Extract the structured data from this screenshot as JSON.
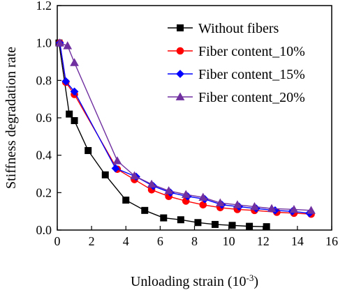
{
  "chart_data": {
    "type": "line",
    "xlabel": "Unloading strain (10",
    "xlabel_sup": "-3",
    "xlabel_end": ")",
    "ylabel": "Stiffness degradation rate",
    "xlim": [
      0,
      16
    ],
    "ylim": [
      0,
      1.2
    ],
    "xticks": [
      "0",
      "2",
      "4",
      "6",
      "8",
      "10",
      "12",
      "14",
      "16"
    ],
    "yticks": [
      "0.0",
      "0.2",
      "0.4",
      "0.6",
      "0.8",
      "1.0",
      "1.2"
    ],
    "legend_position": "top-right",
    "series": [
      {
        "name": "Without fibers",
        "color": "#000000",
        "marker": "square",
        "x": [
          0.1,
          0.7,
          1.0,
          1.8,
          2.8,
          4.0,
          5.1,
          6.2,
          7.2,
          8.2,
          9.2,
          10.2,
          11.2,
          12.2
        ],
        "y": [
          1.0,
          0.62,
          0.585,
          0.425,
          0.295,
          0.16,
          0.105,
          0.065,
          0.055,
          0.04,
          0.03,
          0.025,
          0.02,
          0.018
        ]
      },
      {
        "name": "Fiber content_10%",
        "color": "#ff0000",
        "marker": "circle",
        "x": [
          0.15,
          0.5,
          1.0,
          3.5,
          4.5,
          5.5,
          6.5,
          7.5,
          8.5,
          9.5,
          10.5,
          11.5,
          12.8,
          13.8,
          14.8
        ],
        "y": [
          1.0,
          0.79,
          0.725,
          0.325,
          0.27,
          0.215,
          0.18,
          0.155,
          0.135,
          0.12,
          0.11,
          0.105,
          0.095,
          0.09,
          0.085
        ]
      },
      {
        "name": "Fiber content_15%",
        "color": "#0000ff",
        "marker": "diamond",
        "x": [
          0.15,
          0.5,
          1.0,
          3.4,
          4.6,
          5.6,
          6.6,
          7.6,
          8.6,
          9.6,
          10.6,
          11.6,
          12.7,
          13.7,
          14.7
        ],
        "y": [
          1.0,
          0.795,
          0.74,
          0.33,
          0.285,
          0.235,
          0.2,
          0.18,
          0.165,
          0.135,
          0.125,
          0.115,
          0.105,
          0.1,
          0.09
        ]
      },
      {
        "name": "Fiber content_20%",
        "color": "#7030a0",
        "marker": "triangle",
        "x": [
          0.15,
          0.6,
          1.0,
          3.5,
          4.5,
          5.5,
          6.5,
          7.5,
          8.5,
          9.5,
          10.5,
          11.5,
          12.5,
          13.8,
          14.8
        ],
        "y": [
          1.0,
          0.985,
          0.895,
          0.37,
          0.29,
          0.245,
          0.21,
          0.19,
          0.175,
          0.145,
          0.135,
          0.125,
          0.115,
          0.11,
          0.105
        ]
      }
    ]
  }
}
